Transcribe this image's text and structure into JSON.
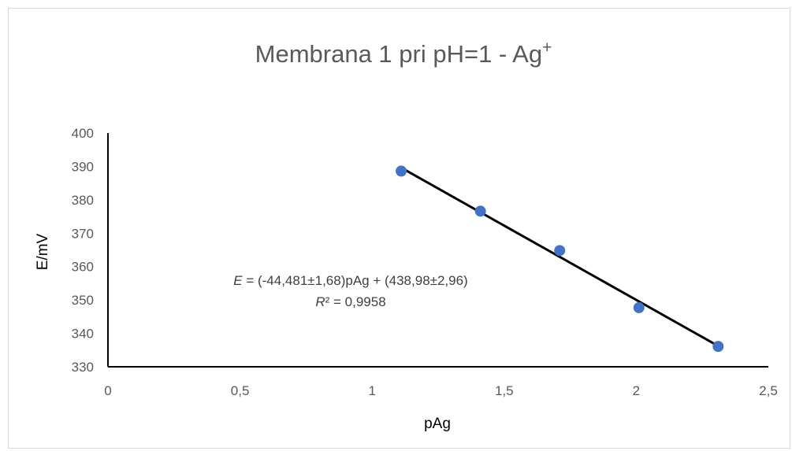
{
  "chart_data": {
    "type": "scatter",
    "title": "Membrana 1 pri pH=1 - Ag",
    "title_superscript": "+",
    "xlabel": "pAg",
    "ylabel": "E/mV",
    "xlim": [
      0,
      2.5
    ],
    "ylim": [
      330,
      400
    ],
    "x_ticks": [
      "0",
      "0,5",
      "1",
      "1,5",
      "2",
      "2,5"
    ],
    "x_tick_values": [
      0,
      0.5,
      1,
      1.5,
      2,
      2.5
    ],
    "y_ticks": [
      "330",
      "340",
      "350",
      "360",
      "370",
      "380",
      "390",
      "400"
    ],
    "y_tick_values": [
      330,
      340,
      350,
      360,
      370,
      380,
      390,
      400
    ],
    "grid": false,
    "series": [
      {
        "x": [
          1.11,
          1.41,
          1.71,
          2.01,
          2.31
        ],
        "y": [
          388.6,
          376.6,
          364.8,
          347.7,
          336.1
        ],
        "marker_color": "#4472C4"
      }
    ],
    "trendline": {
      "slope": -44.481,
      "intercept": 438.98,
      "x_range": [
        1.11,
        2.31
      ],
      "color": "#000000"
    },
    "annotation": {
      "equation_var": "E",
      "equation_rest": " = (-44,481±1,68)pAg + (438,98±2,96)",
      "r2_var": "R",
      "r2_rest": "² = 0,9958"
    }
  }
}
